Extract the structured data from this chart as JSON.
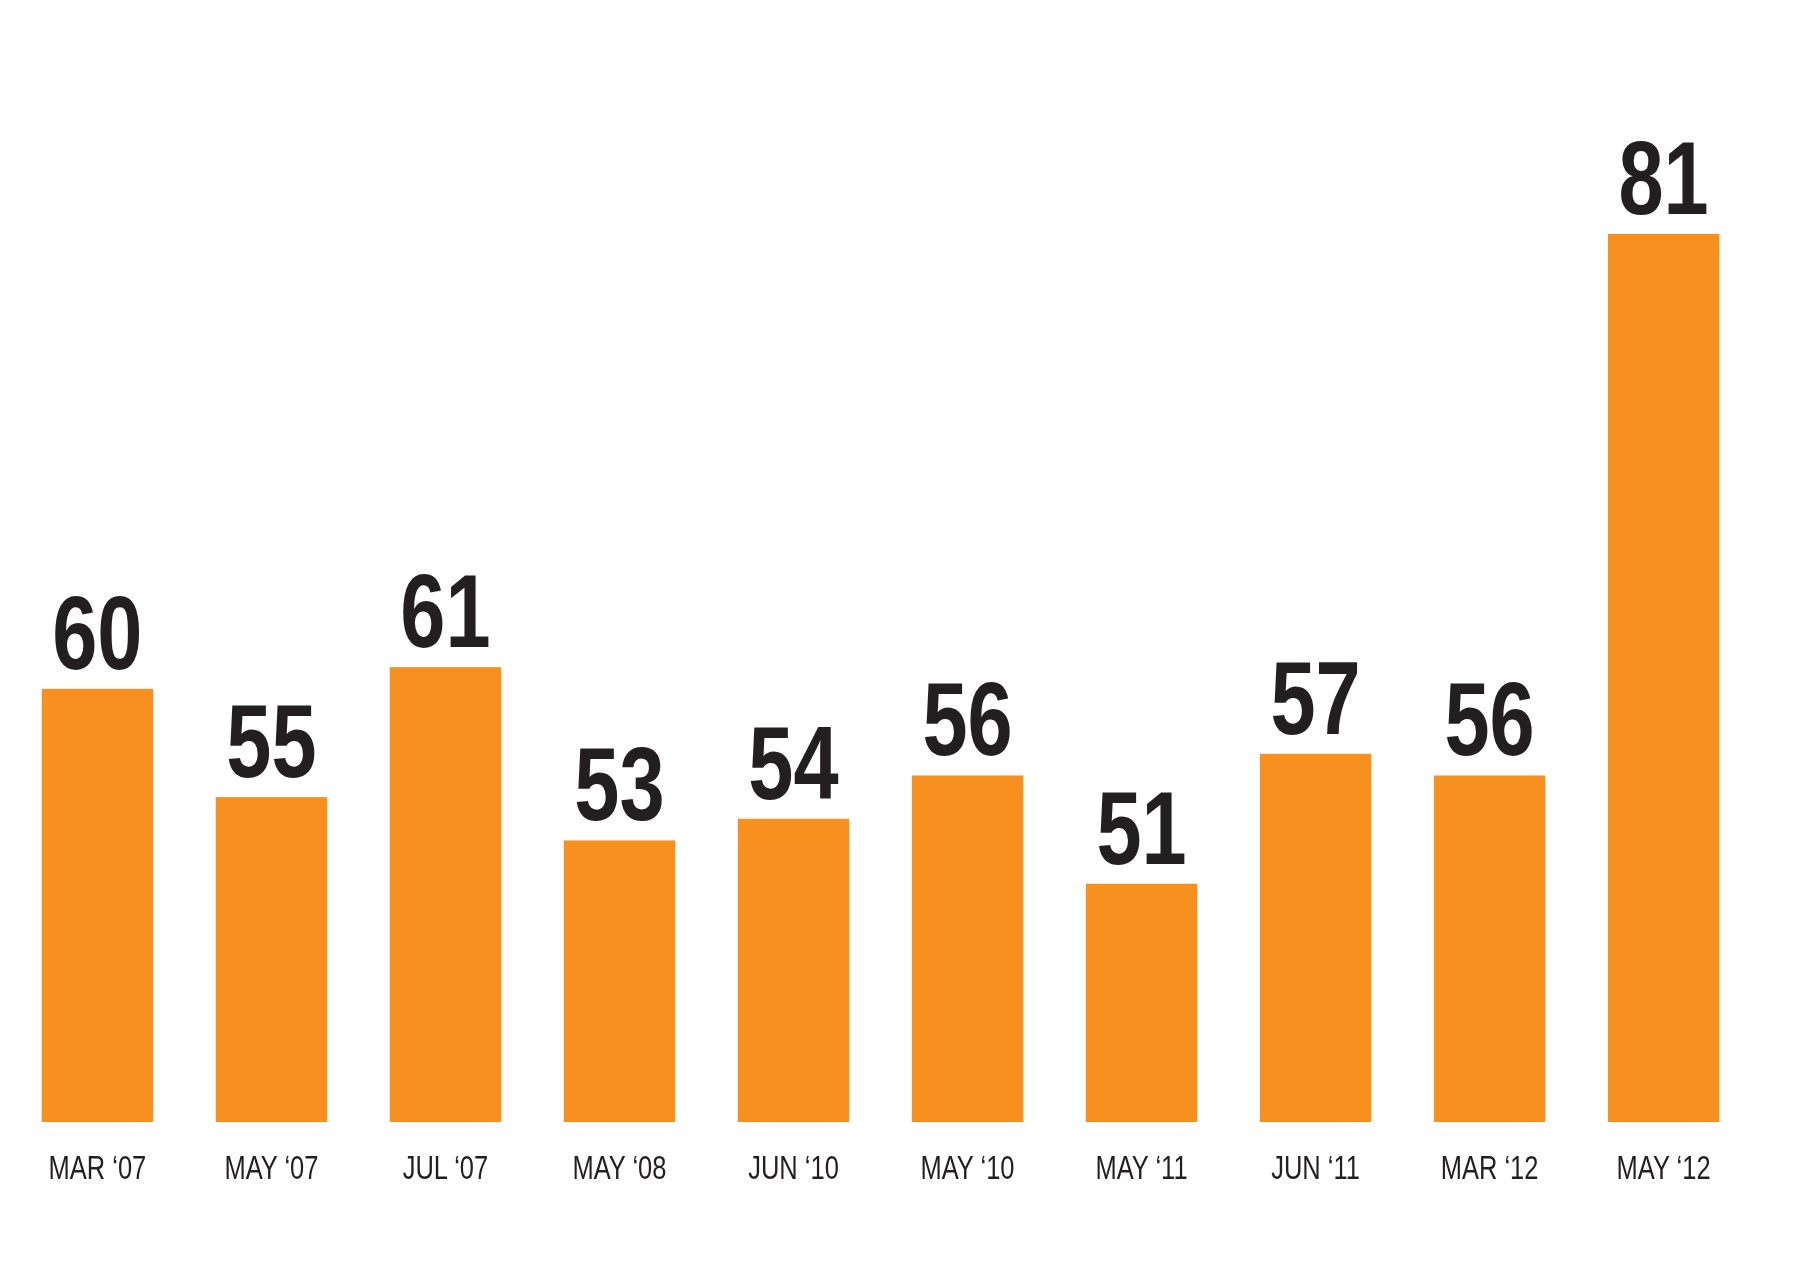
{
  "chart_data": {
    "type": "bar",
    "categories": [
      "MAR ‘07",
      "MAY ‘07",
      "JUL ‘07",
      "MAY ‘08",
      "JUN ‘10",
      "MAY ‘10",
      "MAY ‘11",
      "JUN ‘11",
      "MAR ‘12",
      "MAY ‘12"
    ],
    "values": [
      60,
      55,
      61,
      53,
      54,
      56,
      51,
      57,
      56,
      81
    ],
    "color": "#f7901e",
    "ylim": [
      40,
      81
    ],
    "data_labels": true,
    "tick_labels": "x"
  }
}
